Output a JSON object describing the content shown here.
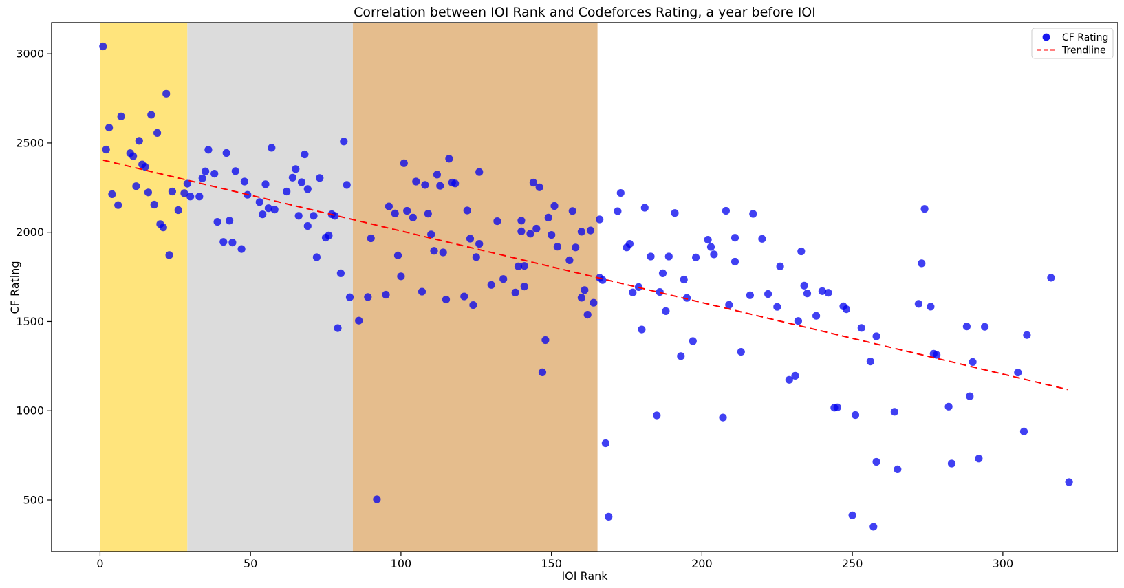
{
  "title": "Correlation between IOI Rank and Codeforces Rating, a year before IOI",
  "axes": {
    "xlabel": "IOI Rank",
    "ylabel": "CF Rating",
    "x_ticks": [
      0,
      50,
      100,
      150,
      200,
      250,
      300
    ],
    "y_ticks": [
      500,
      1000,
      1500,
      2000,
      2500,
      3000
    ],
    "xlim": [
      -16.1,
      338.2
    ],
    "ylim": [
      211,
      3174
    ],
    "grid": false
  },
  "legend": {
    "position": "upper right",
    "items": [
      {
        "label": "CF Rating",
        "marker": "dot",
        "color": "#0000ee"
      },
      {
        "label": "Trendline",
        "marker": "dashed-line",
        "color": "#ff0000"
      }
    ]
  },
  "bands": [
    {
      "name": "band-1",
      "x_from": 0,
      "x_to": 29,
      "color": "#ffe47c"
    },
    {
      "name": "band-2",
      "x_from": 29,
      "x_to": 84,
      "color": "#dcdcdc"
    },
    {
      "name": "band-3",
      "x_from": 84,
      "x_to": 165.3,
      "color": "#e5bd8d"
    }
  ],
  "chart_data": {
    "type": "scatter",
    "xlabel": "IOI Rank",
    "ylabel": "CF Rating",
    "title": "Correlation between IOI Rank and Codeforces Rating, a year before IOI",
    "series": [
      {
        "name": "CF Rating",
        "color": "#0000ee",
        "marker_opacity": 0.75,
        "points": [
          [
            1,
            3041
          ],
          [
            22,
            2776
          ],
          [
            7,
            2649
          ],
          [
            17,
            2658
          ],
          [
            3,
            2586
          ],
          [
            19,
            2556
          ],
          [
            2,
            2463
          ],
          [
            13,
            2512
          ],
          [
            10,
            2443
          ],
          [
            11,
            2426
          ],
          [
            14,
            2380
          ],
          [
            15,
            2366
          ],
          [
            12,
            2258
          ],
          [
            4,
            2213
          ],
          [
            16,
            2223
          ],
          [
            6,
            2152
          ],
          [
            18,
            2155
          ],
          [
            24,
            2228
          ],
          [
            28,
            2219
          ],
          [
            26,
            2124
          ],
          [
            20,
            2046
          ],
          [
            21,
            2027
          ],
          [
            23,
            1872
          ],
          [
            36,
            2462
          ],
          [
            42,
            2444
          ],
          [
            57,
            2473
          ],
          [
            68,
            2436
          ],
          [
            81,
            2508
          ],
          [
            35,
            2341
          ],
          [
            45,
            2342
          ],
          [
            38,
            2328
          ],
          [
            34,
            2302
          ],
          [
            29,
            2272
          ],
          [
            48,
            2284
          ],
          [
            55,
            2269
          ],
          [
            65,
            2354
          ],
          [
            64,
            2306
          ],
          [
            67,
            2280
          ],
          [
            73,
            2304
          ],
          [
            69,
            2242
          ],
          [
            82,
            2265
          ],
          [
            62,
            2228
          ],
          [
            30,
            2200
          ],
          [
            33,
            2200
          ],
          [
            49,
            2210
          ],
          [
            53,
            2169
          ],
          [
            56,
            2135
          ],
          [
            58,
            2127
          ],
          [
            54,
            2100
          ],
          [
            66,
            2092
          ],
          [
            71,
            2092
          ],
          [
            77,
            2101
          ],
          [
            78,
            2092
          ],
          [
            39,
            2058
          ],
          [
            43,
            2065
          ],
          [
            69,
            2035
          ],
          [
            75,
            1970
          ],
          [
            76,
            1982
          ],
          [
            41,
            1946
          ],
          [
            44,
            1942
          ],
          [
            47,
            1906
          ],
          [
            72,
            1860
          ],
          [
            80,
            1770
          ],
          [
            79,
            1463
          ],
          [
            83,
            1636
          ],
          [
            89,
            1637
          ],
          [
            86,
            1505
          ],
          [
            90,
            1966
          ],
          [
            101,
            2387
          ],
          [
            116,
            2412
          ],
          [
            112,
            2323
          ],
          [
            126,
            2337
          ],
          [
            105,
            2284
          ],
          [
            108,
            2265
          ],
          [
            113,
            2260
          ],
          [
            117,
            2278
          ],
          [
            118,
            2273
          ],
          [
            96,
            2145
          ],
          [
            98,
            2105
          ],
          [
            102,
            2120
          ],
          [
            104,
            2082
          ],
          [
            109,
            2104
          ],
          [
            122,
            2122
          ],
          [
            144,
            2278
          ],
          [
            146,
            2252
          ],
          [
            132,
            2062
          ],
          [
            140,
            2065
          ],
          [
            143,
            1992
          ],
          [
            145,
            2020
          ],
          [
            140,
            2005
          ],
          [
            151,
            2147
          ],
          [
            149,
            2082
          ],
          [
            157,
            2119
          ],
          [
            150,
            1985
          ],
          [
            126,
            1935
          ],
          [
            125,
            1861
          ],
          [
            156,
            1843
          ],
          [
            158,
            1915
          ],
          [
            152,
            1919
          ],
          [
            160,
            2003
          ],
          [
            163,
            2010
          ],
          [
            110,
            1988
          ],
          [
            111,
            1896
          ],
          [
            114,
            1887
          ],
          [
            123,
            1964
          ],
          [
            99,
            1870
          ],
          [
            100,
            1753
          ],
          [
            130,
            1705
          ],
          [
            134,
            1738
          ],
          [
            139,
            1809
          ],
          [
            141,
            1811
          ],
          [
            141,
            1696
          ],
          [
            138,
            1662
          ],
          [
            95,
            1650
          ],
          [
            107,
            1667
          ],
          [
            115,
            1623
          ],
          [
            121,
            1640
          ],
          [
            124,
            1592
          ],
          [
            164,
            1605
          ],
          [
            161,
            1676
          ],
          [
            160,
            1633
          ],
          [
            162,
            1538
          ],
          [
            148,
            1396
          ],
          [
            147,
            1215
          ],
          [
            92,
            504
          ],
          [
            166,
            2072
          ],
          [
            166,
            1745
          ],
          [
            167,
            1732
          ],
          [
            168,
            818
          ],
          [
            169,
            406
          ],
          [
            173,
            2220
          ],
          [
            172,
            2118
          ],
          [
            181,
            2137
          ],
          [
            191,
            2108
          ],
          [
            208,
            2120
          ],
          [
            217,
            2103
          ],
          [
            175,
            1915
          ],
          [
            176,
            1935
          ],
          [
            183,
            1864
          ],
          [
            189,
            1864
          ],
          [
            198,
            1859
          ],
          [
            202,
            1958
          ],
          [
            203,
            1918
          ],
          [
            204,
            1876
          ],
          [
            211,
            1969
          ],
          [
            211,
            1835
          ],
          [
            220,
            1963
          ],
          [
            226,
            1809
          ],
          [
            233,
            1893
          ],
          [
            177,
            1663
          ],
          [
            179,
            1693
          ],
          [
            186,
            1665
          ],
          [
            187,
            1770
          ],
          [
            194,
            1735
          ],
          [
            195,
            1632
          ],
          [
            188,
            1558
          ],
          [
            209,
            1593
          ],
          [
            216,
            1647
          ],
          [
            222,
            1654
          ],
          [
            225,
            1582
          ],
          [
            234,
            1701
          ],
          [
            235,
            1657
          ],
          [
            240,
            1670
          ],
          [
            242,
            1661
          ],
          [
            238,
            1532
          ],
          [
            232,
            1503
          ],
          [
            247,
            1585
          ],
          [
            248,
            1569
          ],
          [
            253,
            1464
          ],
          [
            180,
            1455
          ],
          [
            197,
            1390
          ],
          [
            193,
            1306
          ],
          [
            213,
            1330
          ],
          [
            229,
            1173
          ],
          [
            231,
            1196
          ],
          [
            244,
            1017
          ],
          [
            245,
            1019
          ],
          [
            185,
            974
          ],
          [
            207,
            962
          ],
          [
            251,
            976
          ],
          [
            250,
            414
          ],
          [
            274,
            2131
          ],
          [
            273,
            1826
          ],
          [
            316,
            1745
          ],
          [
            272,
            1599
          ],
          [
            276,
            1583
          ],
          [
            288,
            1472
          ],
          [
            294,
            1470
          ],
          [
            308,
            1424
          ],
          [
            258,
            1417
          ],
          [
            277,
            1319
          ],
          [
            278,
            1313
          ],
          [
            256,
            1276
          ],
          [
            290,
            1273
          ],
          [
            305,
            1214
          ],
          [
            289,
            1081
          ],
          [
            282,
            1023
          ],
          [
            264,
            994
          ],
          [
            307,
            884
          ],
          [
            258,
            714
          ],
          [
            265,
            672
          ],
          [
            283,
            704
          ],
          [
            292,
            732
          ],
          [
            322,
            600
          ],
          [
            257,
            350
          ]
        ]
      }
    ],
    "trendline": {
      "name": "Trendline",
      "color": "#ff0000",
      "style": "dashed",
      "from": [
        1,
        2404
      ],
      "to": [
        321.5,
        1119
      ],
      "slope": -4.0,
      "intercept": 2408
    }
  }
}
